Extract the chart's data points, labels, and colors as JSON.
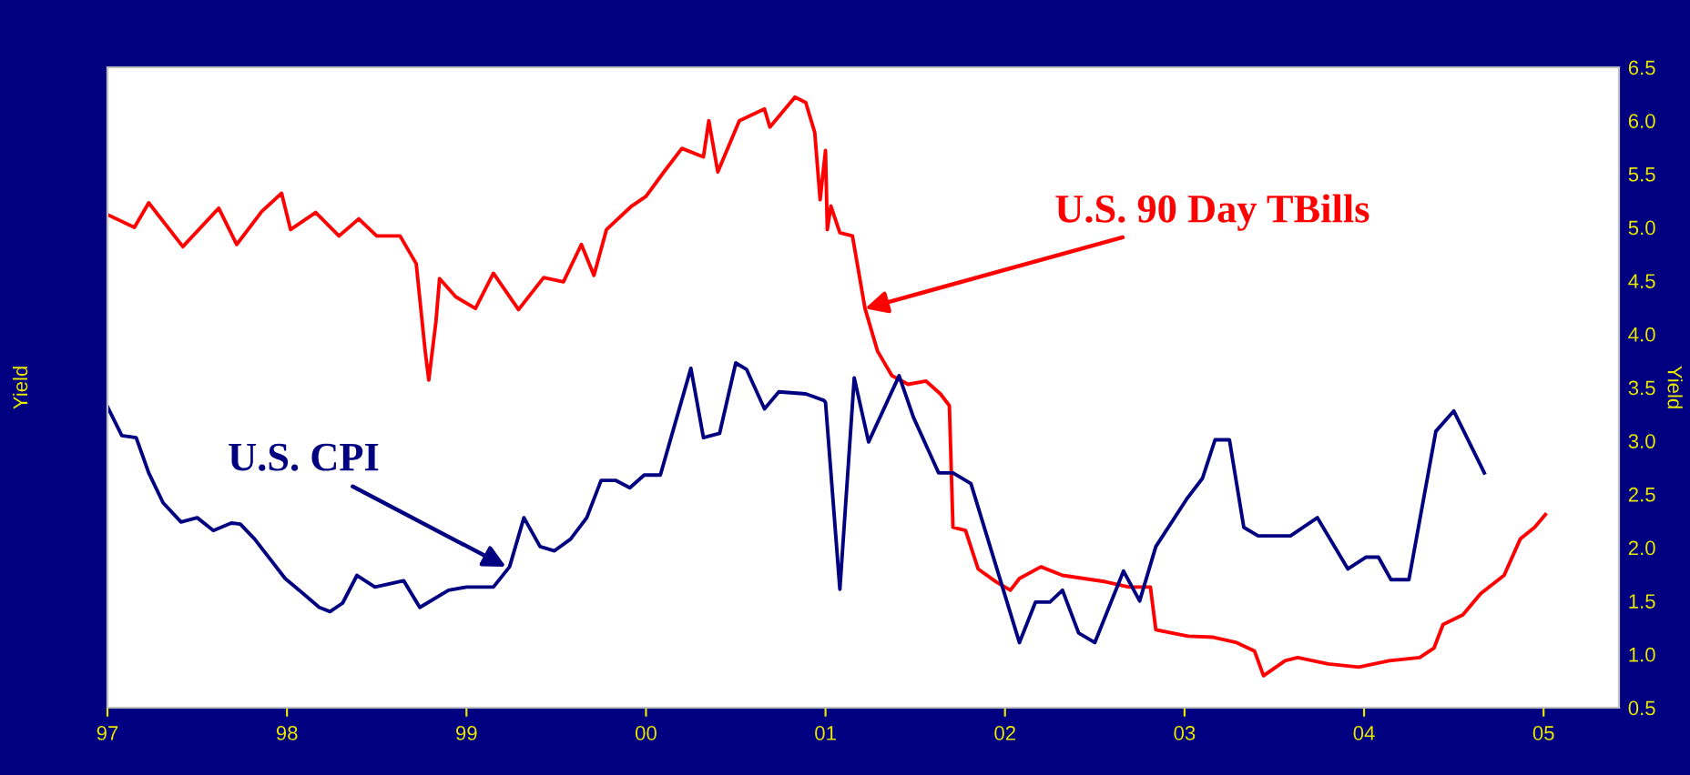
{
  "chart_data": {
    "type": "line",
    "ylabel": "Yield",
    "y2label": "Yield",
    "xlim": [
      1997,
      2005.42
    ],
    "xticks": [
      {
        "value": 1997,
        "label": "97"
      },
      {
        "value": 1998,
        "label": "98"
      },
      {
        "value": 1999,
        "label": "99"
      },
      {
        "value": 2000,
        "label": "00"
      },
      {
        "value": 2001,
        "label": "01"
      },
      {
        "value": 2002,
        "label": "02"
      },
      {
        "value": 2003,
        "label": "03"
      },
      {
        "value": 2004,
        "label": "04"
      },
      {
        "value": 2005,
        "label": "05"
      }
    ],
    "ylim": [
      0.5,
      6.5
    ],
    "yticks": [
      {
        "value": 0.5,
        "label": "0.5"
      },
      {
        "value": 1.0,
        "label": "1.0"
      },
      {
        "value": 1.5,
        "label": "1.5"
      },
      {
        "value": 2.0,
        "label": "2.0"
      },
      {
        "value": 2.5,
        "label": "2.5"
      },
      {
        "value": 3.0,
        "label": "3.0"
      },
      {
        "value": 3.5,
        "label": "3.5"
      },
      {
        "value": 4.0,
        "label": "4.0"
      },
      {
        "value": 4.5,
        "label": "4.5"
      },
      {
        "value": 5.0,
        "label": "5.0"
      },
      {
        "value": 5.5,
        "label": "5.5"
      },
      {
        "value": 6.0,
        "label": "6.0"
      },
      {
        "value": 6.5,
        "label": "6.5"
      }
    ],
    "grid": false,
    "marker": "none",
    "line_style": "solid",
    "series": [
      {
        "color": "#ff0000",
        "x": [
          1997.0,
          1997.15,
          1997.23,
          1997.42,
          1997.62,
          1997.72,
          1997.86,
          1997.97,
          1998.02,
          1998.16,
          1998.29,
          1998.4,
          1998.5,
          1998.63,
          1998.72,
          1998.77,
          1998.79,
          1998.83,
          1998.85,
          1998.94,
          1999.05,
          1999.15,
          1999.29,
          1999.43,
          1999.54,
          1999.64,
          1999.71,
          1999.78,
          1999.92,
          2000.0,
          2000.1,
          2000.2,
          2000.32,
          2000.35,
          2000.4,
          2000.52,
          2000.66,
          2000.69,
          2000.83,
          2000.89,
          2000.94,
          2000.97,
          2001.0,
          2001.01,
          2001.03,
          2001.08,
          2001.15,
          2001.22,
          2001.29,
          2001.37,
          2001.46,
          2001.56,
          2001.64,
          2001.69,
          2001.71,
          2001.78,
          2001.85,
          2001.95,
          2002.03,
          2002.08,
          2002.2,
          2002.32,
          2002.56,
          2002.69,
          2002.81,
          2002.84,
          2003.02,
          2003.16,
          2003.29,
          2003.39,
          2003.44,
          2003.56,
          2003.63,
          2003.8,
          2003.97,
          2004.14,
          2004.31,
          2004.39,
          2004.44,
          2004.55,
          2004.65,
          2004.78,
          2004.87,
          2004.95,
          2005.01
        ],
        "values": [
          5.12,
          5.0,
          5.23,
          4.82,
          5.18,
          4.84,
          5.15,
          5.32,
          4.98,
          5.14,
          4.92,
          5.08,
          4.92,
          4.92,
          4.66,
          3.84,
          3.57,
          4.12,
          4.52,
          4.35,
          4.24,
          4.57,
          4.23,
          4.53,
          4.49,
          4.84,
          4.55,
          4.98,
          5.2,
          5.29,
          5.52,
          5.74,
          5.66,
          6.0,
          5.52,
          6.0,
          6.11,
          5.94,
          6.22,
          6.17,
          5.89,
          5.26,
          5.72,
          4.98,
          5.2,
          4.95,
          4.92,
          4.24,
          3.84,
          3.61,
          3.53,
          3.56,
          3.44,
          3.33,
          2.19,
          2.16,
          1.8,
          1.68,
          1.6,
          1.71,
          1.82,
          1.74,
          1.68,
          1.63,
          1.63,
          1.23,
          1.17,
          1.16,
          1.11,
          1.03,
          0.8,
          0.94,
          0.97,
          0.91,
          0.88,
          0.94,
          0.97,
          1.06,
          1.28,
          1.37,
          1.57,
          1.74,
          2.08,
          2.19,
          2.31
        ]
      },
      {
        "color": "#000080",
        "x": [
          1997.0,
          1997.08,
          1997.16,
          1997.23,
          1997.31,
          1997.41,
          1997.5,
          1997.59,
          1997.69,
          1997.74,
          1997.82,
          1997.99,
          1998.09,
          1998.18,
          1998.24,
          1998.31,
          1998.39,
          1998.49,
          1998.65,
          1998.74,
          1998.9,
          1999.0,
          1999.15,
          1999.24,
          1999.32,
          1999.41,
          1999.49,
          1999.58,
          1999.67,
          1999.75,
          1999.83,
          1999.91,
          1999.99,
          2000.08,
          2000.25,
          2000.32,
          2000.41,
          2000.5,
          2000.56,
          2000.66,
          2000.74,
          2000.89,
          2000.99,
          2001.0,
          2001.08,
          2001.16,
          2001.24,
          2001.41,
          2001.49,
          2001.63,
          2001.71,
          2001.81,
          2002.08,
          2002.17,
          2002.25,
          2002.32,
          2002.41,
          2002.5,
          2002.66,
          2002.75,
          2002.84,
          2003.01,
          2003.1,
          2003.17,
          2003.25,
          2003.33,
          2003.41,
          2003.59,
          2003.74,
          2003.91,
          2004.01,
          2004.08,
          2004.15,
          2004.25,
          2004.4,
          2004.5,
          2004.67
        ],
        "values": [
          3.32,
          3.05,
          3.03,
          2.7,
          2.42,
          2.24,
          2.28,
          2.16,
          2.23,
          2.22,
          2.08,
          1.71,
          1.57,
          1.44,
          1.4,
          1.48,
          1.74,
          1.63,
          1.69,
          1.44,
          1.6,
          1.63,
          1.63,
          1.82,
          2.28,
          2.01,
          1.97,
          2.08,
          2.28,
          2.63,
          2.63,
          2.56,
          2.68,
          2.68,
          3.68,
          3.03,
          3.07,
          3.73,
          3.67,
          3.3,
          3.46,
          3.44,
          3.38,
          3.36,
          1.61,
          3.59,
          2.99,
          3.61,
          3.22,
          2.7,
          2.7,
          2.6,
          1.11,
          1.49,
          1.49,
          1.6,
          1.2,
          1.11,
          1.78,
          1.5,
          2.01,
          2.45,
          2.65,
          3.01,
          3.01,
          2.19,
          2.11,
          2.11,
          2.28,
          1.8,
          1.91,
          1.91,
          1.7,
          1.7,
          3.09,
          3.28,
          2.7
        ]
      }
    ],
    "annotations": [
      {
        "text": "U.S. 90 Day TBills",
        "x": 2001.22,
        "y": 4.24
      },
      {
        "text": "U.S. CPI",
        "x": 1999.22,
        "y": 1.82
      }
    ]
  }
}
